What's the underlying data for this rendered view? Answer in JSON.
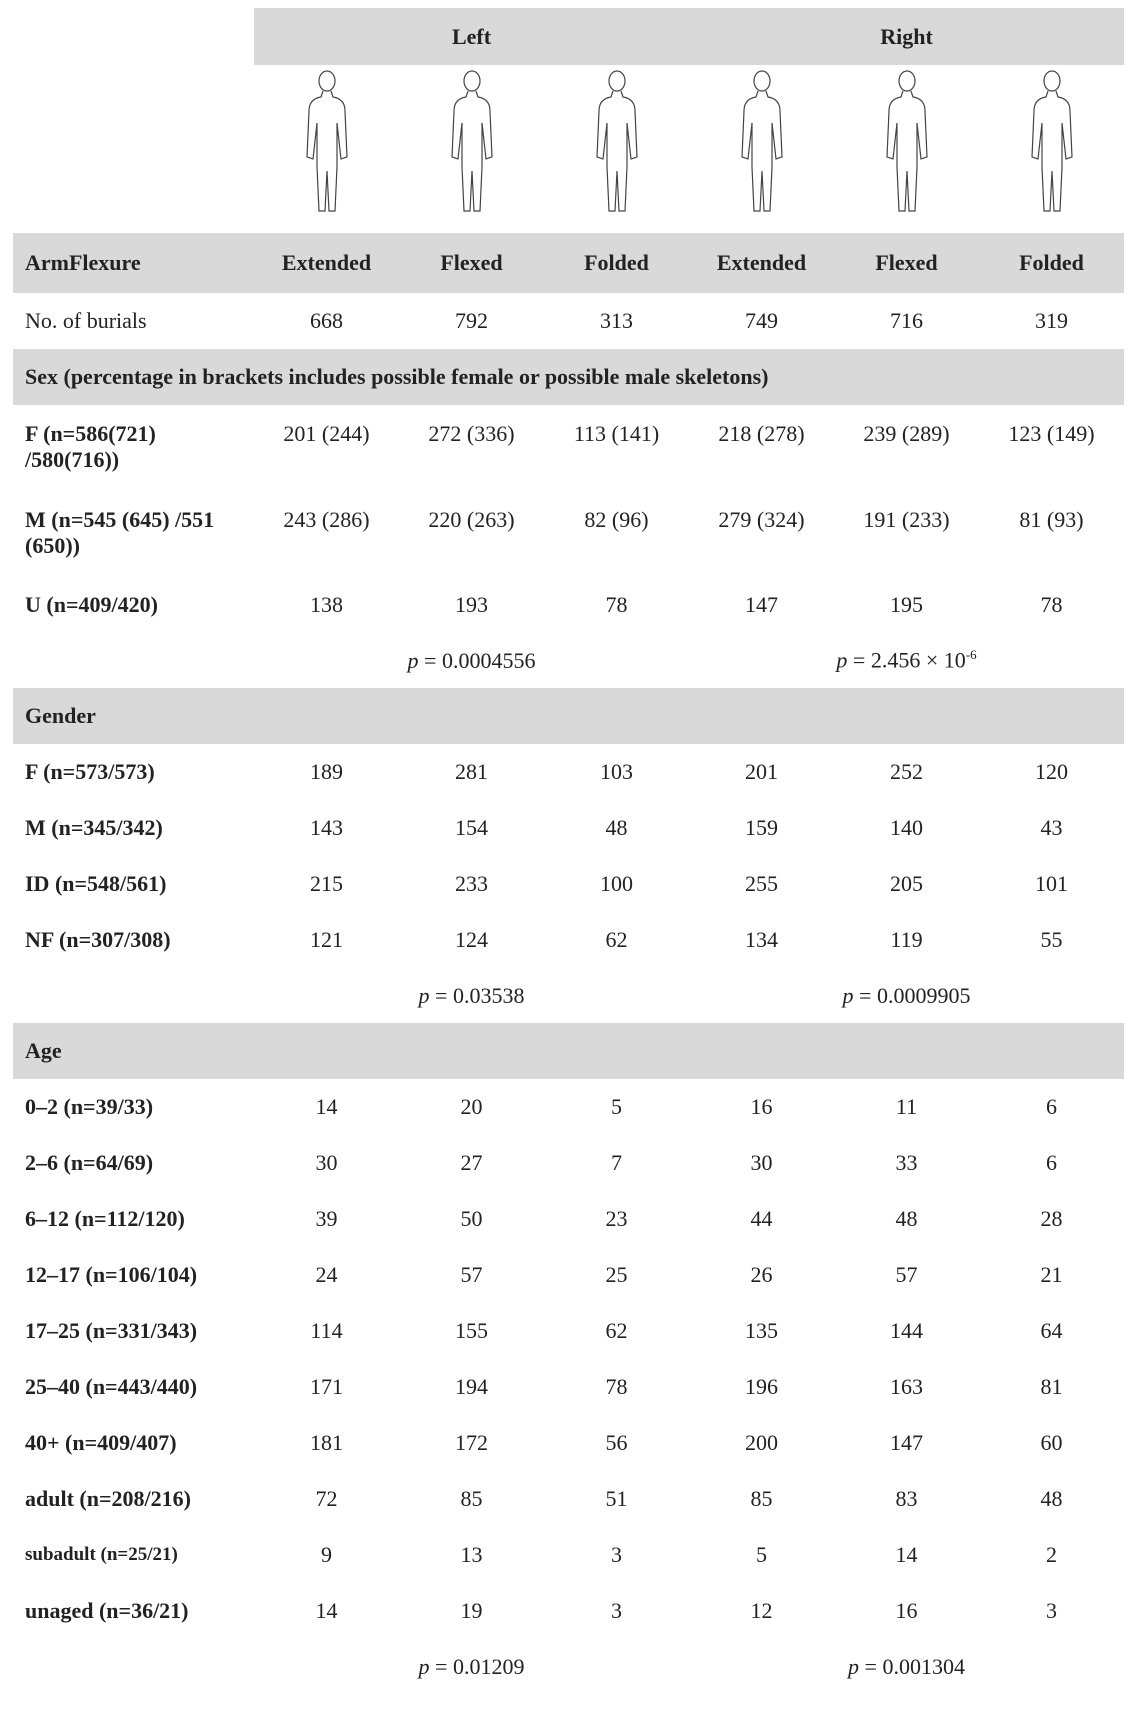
{
  "header": {
    "groups": [
      "Left",
      "Right"
    ],
    "columns_label": "ArmFlexure",
    "columns": [
      "Extended",
      "Flexed",
      "Folded",
      "Extended",
      "Flexed",
      "Folded"
    ]
  },
  "burials": {
    "label": "No. of burials",
    "values": [
      668,
      792,
      313,
      749,
      716,
      319
    ]
  },
  "sections": [
    {
      "title": "Sex (percentage in brackets includes possible female or possible male skeletons)",
      "rows": [
        {
          "label": "F (n=586(721) /580(716))",
          "values": [
            "201 (244)",
            "272 (336)",
            "113 (141)",
            "218 (278)",
            "239 (289)",
            "123 (149)"
          ]
        },
        {
          "label": "M (n=545 (645) /551 (650))",
          "values": [
            "243 (286)",
            "220 (263)",
            "82 (96)",
            "279 (324)",
            "191 (233)",
            "81 (93)"
          ]
        },
        {
          "label": "U (n=409/420)",
          "values": [
            138,
            193,
            78,
            147,
            195,
            78
          ]
        }
      ],
      "p_values": [
        {
          "symbol": "p",
          "rest": " = 0.0004556"
        },
        {
          "symbol": "p",
          "rest": " = 2.456 × 10",
          "exponent": "-6"
        }
      ]
    },
    {
      "title": "Gender",
      "rows": [
        {
          "label": "F (n=573/573)",
          "values": [
            189,
            281,
            103,
            201,
            252,
            120
          ]
        },
        {
          "label": "M (n=345/342)",
          "values": [
            143,
            154,
            48,
            159,
            140,
            43
          ]
        },
        {
          "label": "ID (n=548/561)",
          "values": [
            215,
            233,
            100,
            255,
            205,
            101
          ]
        },
        {
          "label": "NF (n=307/308)",
          "values": [
            121,
            124,
            62,
            134,
            119,
            55
          ]
        }
      ],
      "p_values": [
        {
          "symbol": "p",
          "rest": " = 0.03538"
        },
        {
          "symbol": "p",
          "rest": " = 0.0009905"
        }
      ]
    },
    {
      "title": "Age",
      "rows": [
        {
          "label": "0–2 (n=39/33)",
          "values": [
            14,
            20,
            5,
            16,
            11,
            6
          ]
        },
        {
          "label": "2–6 (n=64/69)",
          "values": [
            30,
            27,
            7,
            30,
            33,
            6
          ]
        },
        {
          "label": "6–12 (n=112/120)",
          "values": [
            39,
            50,
            23,
            44,
            48,
            28
          ]
        },
        {
          "label": "12–17 (n=106/104)",
          "values": [
            24,
            57,
            25,
            26,
            57,
            21
          ]
        },
        {
          "label": "17–25 (n=331/343)",
          "values": [
            114,
            155,
            62,
            135,
            144,
            64
          ]
        },
        {
          "label": "25–40 (n=443/440)",
          "values": [
            171,
            194,
            78,
            196,
            163,
            81
          ]
        },
        {
          "label": "40+ (n=409/407)",
          "values": [
            181,
            172,
            56,
            200,
            147,
            60
          ]
        },
        {
          "label": "adult (n=208/216)",
          "values": [
            72,
            85,
            51,
            85,
            83,
            48
          ]
        },
        {
          "label": "subadult (n=25/21)",
          "values": [
            9,
            13,
            3,
            5,
            14,
            2
          ]
        },
        {
          "label": "unaged (n=36/21)",
          "values": [
            14,
            19,
            3,
            12,
            16,
            3
          ]
        }
      ],
      "p_values": [
        {
          "symbol": "p",
          "rest": " = 0.01209"
        },
        {
          "symbol": "p",
          "rest": " = 0.001304"
        }
      ]
    }
  ]
}
